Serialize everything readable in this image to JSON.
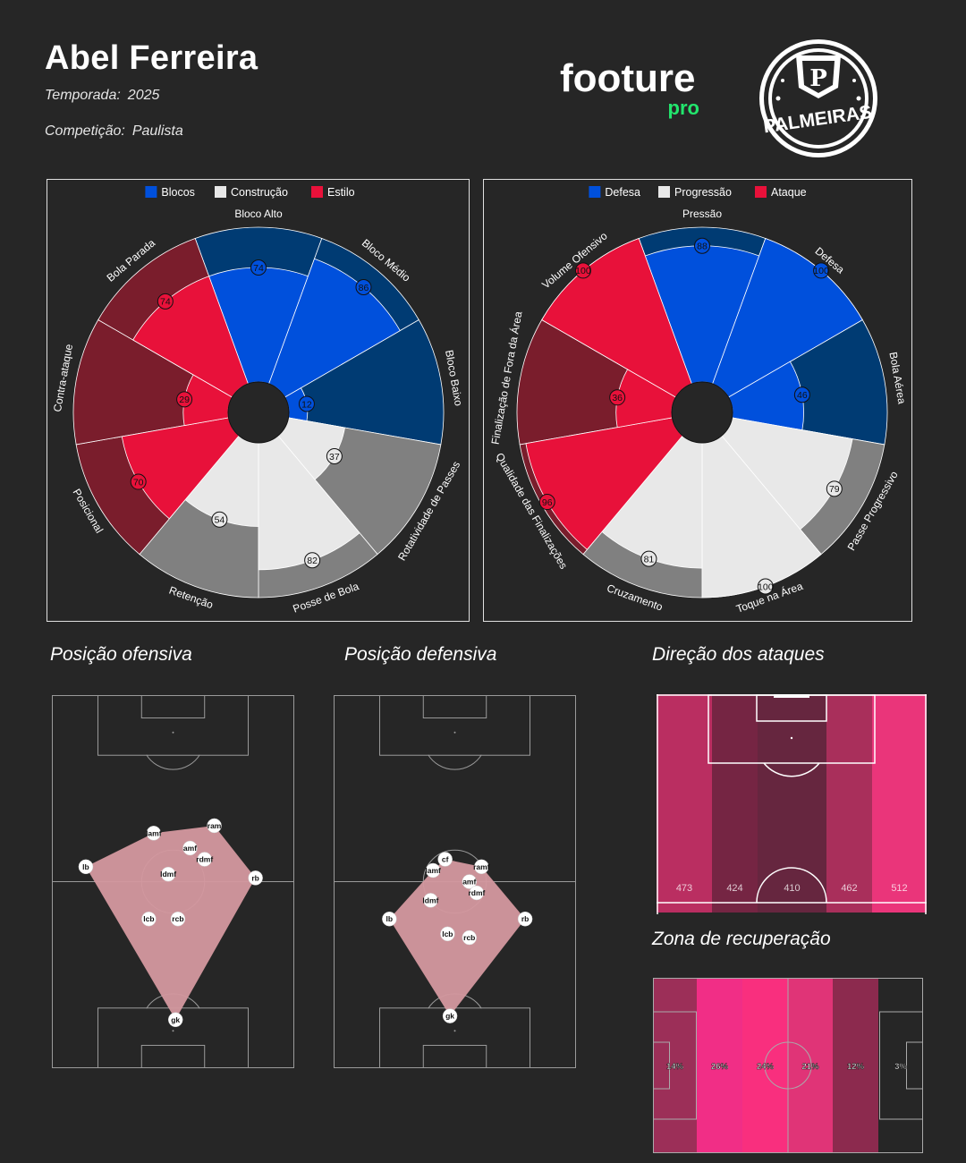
{
  "header": {
    "coach_name": "Abel Ferreira",
    "season_label": "Temporada:",
    "season_value": "2025",
    "competition_label": "Competição:",
    "competition_value": "Paulista",
    "brand_name": "footure",
    "brand_sub": "pro",
    "club_crest_text": "PALMEIRAS"
  },
  "colors": {
    "background": "#262626",
    "blue": "#0050dc",
    "blue_dark": "#003b73",
    "red": "#e8113a",
    "red_dark": "#7a1d2c",
    "light": "#e8e8e8",
    "grey": "#808080",
    "hull": "#d4989f",
    "brand_green": "#22e66d"
  },
  "chart_data": [
    {
      "type": "polar-bar",
      "legend": [
        {
          "label": "Blocos",
          "color": "#0050dc"
        },
        {
          "label": "Construção",
          "color": "#e8e8e8"
        },
        {
          "label": "Estilo",
          "color": "#e8113a"
        }
      ],
      "legend_position": "top",
      "max": 100,
      "categories": [
        {
          "label": "Bloco Alto",
          "value": 74,
          "group": "Blocos"
        },
        {
          "label": "Bloco Médio",
          "value": 86,
          "group": "Blocos"
        },
        {
          "label": "Bloco Baixo",
          "value": 12,
          "group": "Blocos"
        },
        {
          "label": "Rotatividade de Passes",
          "value": 37,
          "group": "Construção"
        },
        {
          "label": "Posse de Bola",
          "value": 82,
          "group": "Construção"
        },
        {
          "label": "Retenção",
          "value": 54,
          "group": "Construção"
        },
        {
          "label": "Posicional",
          "value": 70,
          "group": "Estilo"
        },
        {
          "label": "Contra-ataque",
          "value": 29,
          "group": "Estilo"
        },
        {
          "label": "Bola Parada",
          "value": 74,
          "group": "Estilo"
        }
      ]
    },
    {
      "type": "polar-bar",
      "legend": [
        {
          "label": "Defesa",
          "color": "#0050dc"
        },
        {
          "label": "Progressão",
          "color": "#e8e8e8"
        },
        {
          "label": "Ataque",
          "color": "#e8113a"
        }
      ],
      "legend_position": "top",
      "max": 100,
      "categories": [
        {
          "label": "Pressão",
          "value": 88,
          "group": "Defesa"
        },
        {
          "label": "Defesa",
          "value": 100,
          "group": "Defesa"
        },
        {
          "label": "Bola Aérea",
          "value": 46,
          "group": "Defesa"
        },
        {
          "label": "Passe Progressivo",
          "value": 79,
          "group": "Progressão"
        },
        {
          "label": "Toque na Área",
          "value": 100,
          "group": "Progressão"
        },
        {
          "label": "Cruzamento",
          "value": 81,
          "group": "Progressão"
        },
        {
          "label": "Qualidade das Finalizações",
          "value": 96,
          "group": "Ataque"
        },
        {
          "label": "Finalização de Fora da Área",
          "value": 36,
          "group": "Ataque"
        },
        {
          "label": "Volume Ofensivo",
          "value": 100,
          "group": "Ataque"
        }
      ]
    },
    {
      "type": "scatter",
      "title": "Posição ofensiva",
      "xlim": [
        0,
        100
      ],
      "ylim": [
        0,
        100
      ],
      "points": [
        {
          "label": "lamf",
          "x": 42,
          "y": 63
        },
        {
          "label": "ram",
          "x": 67,
          "y": 65
        },
        {
          "label": "amf",
          "x": 57,
          "y": 59
        },
        {
          "label": "rdmf",
          "x": 63,
          "y": 56
        },
        {
          "label": "ldmf",
          "x": 48,
          "y": 52
        },
        {
          "label": "lb",
          "x": 14,
          "y": 54
        },
        {
          "label": "rb",
          "x": 84,
          "y": 51
        },
        {
          "label": "lcb",
          "x": 40,
          "y": 40
        },
        {
          "label": "rcb",
          "x": 52,
          "y": 40
        },
        {
          "label": "gk",
          "x": 51,
          "y": 13
        }
      ]
    },
    {
      "type": "scatter",
      "title": "Posição defensiva",
      "xlim": [
        0,
        100
      ],
      "ylim": [
        0,
        100
      ],
      "points": [
        {
          "label": "cf",
          "x": 46,
          "y": 56
        },
        {
          "label": "lamf",
          "x": 41,
          "y": 53
        },
        {
          "label": "ramf",
          "x": 61,
          "y": 54
        },
        {
          "label": "amf",
          "x": 56,
          "y": 50
        },
        {
          "label": "rdmf",
          "x": 59,
          "y": 47
        },
        {
          "label": "ldmf",
          "x": 40,
          "y": 45
        },
        {
          "label": "lb",
          "x": 23,
          "y": 40
        },
        {
          "label": "rb",
          "x": 79,
          "y": 40
        },
        {
          "label": "lcb",
          "x": 47,
          "y": 36
        },
        {
          "label": "rcb",
          "x": 56,
          "y": 35
        },
        {
          "label": "gk",
          "x": 48,
          "y": 14
        }
      ]
    },
    {
      "type": "heatmap",
      "title": "Direção dos ataques",
      "categories": [
        "col1",
        "col2",
        "col3",
        "col4",
        "col5"
      ],
      "values": [
        473,
        424,
        410,
        462,
        512
      ],
      "colors": [
        "#ba2e61",
        "#752543",
        "#66263f",
        "#a92f5b",
        "#ea357a"
      ]
    },
    {
      "type": "heatmap",
      "title": "Zona de recuperação",
      "categories": [
        "z1",
        "z2",
        "z3",
        "z4",
        "z5",
        "z6"
      ],
      "values": [
        "14%",
        "26%",
        "24%",
        "21%",
        "12%",
        "3%"
      ],
      "colors": [
        "#9c2f58",
        "#f12e86",
        "#f92f7e",
        "#e03477",
        "#8c2a4e",
        "#262626"
      ]
    }
  ]
}
